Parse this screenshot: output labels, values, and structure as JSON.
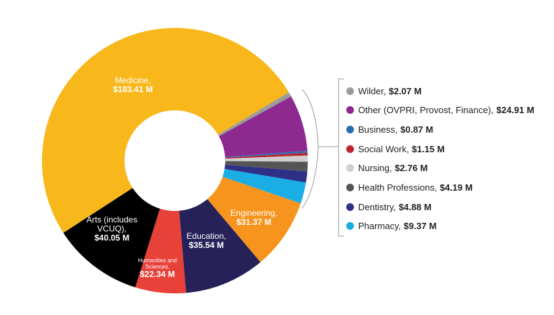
{
  "chart_data": {
    "type": "pie",
    "donut": true,
    "categories": [
      "Wilder,",
      "Other (OVPRI, Provost, Finance),",
      "Business,",
      "Social Work,",
      "Nursing,",
      "Health Professions,",
      "Dentistry,",
      "Pharmacy,",
      "Engineering,",
      "Education,",
      "Humanities and Sciences,",
      "Arts (includes VCUQ),",
      "Medicine,"
    ],
    "values": [
      2.07,
      24.91,
      0.87,
      1.15,
      2.76,
      4.19,
      4.88,
      9.37,
      31.37,
      35.54,
      22.34,
      40.05,
      183.41
    ],
    "value_labels": [
      "$2.07 M",
      "$24.91 M",
      "$0.87 M",
      "$1.15 M",
      "$2.76 M",
      "$4.19 M",
      "$4.88 M",
      "$9.37 M",
      "$31.37 M",
      "$35.54 M",
      "$22.34 M",
      "$40.05 M",
      "$183.41 M"
    ],
    "colors": [
      "#9b9b9b",
      "#8e2a8f",
      "#2a6db5",
      "#c0232c",
      "#cfcfcf",
      "#555555",
      "#2e2f86",
      "#1aaee4",
      "#f7941d",
      "#262259",
      "#e8413a",
      "#000000",
      "#f8b71a"
    ]
  }
}
